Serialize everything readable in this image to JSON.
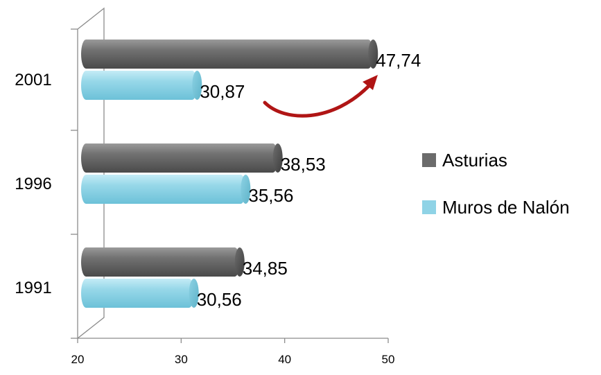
{
  "chart_data": {
    "type": "bar",
    "orientation": "horizontal",
    "categories": [
      "2001",
      "1996",
      "1991"
    ],
    "series": [
      {
        "name": "Asturias",
        "values": [
          47.74,
          38.53,
          34.85
        ],
        "labels": [
          "47,74",
          "38,53",
          "34,85"
        ],
        "color": "#6b6b6b"
      },
      {
        "name": "Muros de Nalón",
        "values": [
          30.87,
          35.56,
          30.56
        ],
        "labels": [
          "30,87",
          "35,56",
          "30,56"
        ],
        "color": "#8fd3e6"
      }
    ],
    "xlim": [
      20,
      50
    ],
    "xticks": [
      "20",
      "30",
      "40",
      "50"
    ],
    "legend_position": "right",
    "annotation": {
      "type": "curved-arrow",
      "from": "30,87",
      "to": "47,74",
      "color": "#b01515"
    }
  }
}
